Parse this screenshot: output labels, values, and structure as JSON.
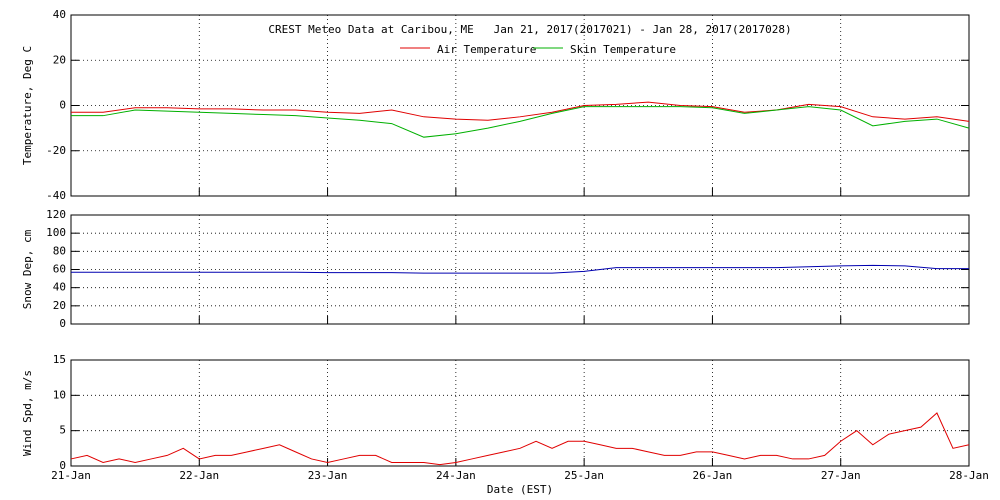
{
  "chart_data": [
    {
      "type": "line",
      "title": "CREST Meteo Data at Caribou, ME   Jan 21, 2017(2017021) - Jan 28, 2017(2017028)",
      "ylabel": "Temperature, Deg C",
      "xlim": [
        0,
        7
      ],
      "xticks": [
        {
          "value": 0,
          "label": "21-Jan"
        },
        {
          "value": 1,
          "label": "22-Jan"
        },
        {
          "value": 2,
          "label": "23-Jan"
        },
        {
          "value": 3,
          "label": "24-Jan"
        },
        {
          "value": 4,
          "label": "25-Jan"
        },
        {
          "value": 5,
          "label": "26-Jan"
        },
        {
          "value": 6,
          "label": "27-Jan"
        },
        {
          "value": 7,
          "label": "28-Jan"
        }
      ],
      "ylim": [
        -40,
        40
      ],
      "yticks": [
        -40,
        -20,
        0,
        20,
        40
      ],
      "grid": true,
      "x": [
        0,
        0.25,
        0.5,
        0.75,
        1,
        1.25,
        1.5,
        1.75,
        2,
        2.25,
        2.5,
        2.75,
        3,
        3.25,
        3.5,
        3.75,
        4,
        4.25,
        4.5,
        4.75,
        5,
        5.25,
        5.5,
        5.75,
        6,
        6.25,
        6.5,
        6.75,
        7
      ],
      "series": [
        {
          "name": "Air Temperature",
          "color": "#e00000",
          "values": [
            -3,
            -3,
            -1,
            -1,
            -1.5,
            -1.5,
            -2,
            -2,
            -3,
            -3.5,
            -2,
            -5,
            -6,
            -6.5,
            -5,
            -3,
            0,
            0.5,
            1.5,
            0,
            -0.5,
            -3,
            -2,
            0.5,
            -0.5,
            -5,
            -6,
            -5,
            -7
          ]
        },
        {
          "name": "Skin Temperature",
          "color": "#00b000",
          "values": [
            -4.5,
            -4.5,
            -2,
            -2.5,
            -3,
            -3.5,
            -4,
            -4.5,
            -5.5,
            -6.5,
            -8,
            -14,
            -12.5,
            -10,
            -7,
            -3.5,
            -0.5,
            -0.5,
            -0.5,
            -0.5,
            -1,
            -3.5,
            -2,
            -0.5,
            -2,
            -9,
            -7,
            -6,
            -10
          ]
        }
      ]
    },
    {
      "type": "line",
      "ylabel": "Snow Dep, cm",
      "xlim": [
        0,
        7
      ],
      "xticks": [
        {
          "value": 0,
          "label": "21-Jan"
        },
        {
          "value": 1,
          "label": "22-Jan"
        },
        {
          "value": 2,
          "label": "23-Jan"
        },
        {
          "value": 3,
          "label": "24-Jan"
        },
        {
          "value": 4,
          "label": "25-Jan"
        },
        {
          "value": 5,
          "label": "26-Jan"
        },
        {
          "value": 6,
          "label": "27-Jan"
        },
        {
          "value": 7,
          "label": "28-Jan"
        }
      ],
      "ylim": [
        0,
        120
      ],
      "yticks": [
        0,
        20,
        40,
        60,
        80,
        100,
        120
      ],
      "grid": true,
      "x": [
        0,
        0.25,
        0.5,
        0.75,
        1,
        1.25,
        1.5,
        1.75,
        2,
        2.25,
        2.5,
        2.75,
        3,
        3.25,
        3.5,
        3.75,
        4,
        4.25,
        4.5,
        4.75,
        5,
        5.25,
        5.5,
        5.75,
        6,
        6.25,
        6.5,
        6.75,
        7
      ],
      "series": [
        {
          "color": "#0000b0",
          "values": [
            57,
            57,
            57,
            57,
            57,
            57,
            57,
            57,
            56.5,
            56.5,
            56.5,
            56,
            56,
            56,
            56,
            56,
            58,
            62,
            62,
            62,
            62,
            62,
            62,
            63,
            64,
            64.5,
            64,
            61,
            61
          ]
        }
      ]
    },
    {
      "type": "line",
      "ylabel": "Wind Spd, m/s",
      "xlabel": "Date (EST)",
      "xlim": [
        0,
        7
      ],
      "xticks": [
        {
          "value": 0,
          "label": "21-Jan"
        },
        {
          "value": 1,
          "label": "22-Jan"
        },
        {
          "value": 2,
          "label": "23-Jan"
        },
        {
          "value": 3,
          "label": "24-Jan"
        },
        {
          "value": 4,
          "label": "25-Jan"
        },
        {
          "value": 5,
          "label": "26-Jan"
        },
        {
          "value": 6,
          "label": "27-Jan"
        },
        {
          "value": 7,
          "label": "28-Jan"
        }
      ],
      "ylim": [
        0,
        15
      ],
      "yticks": [
        0,
        5,
        10,
        15
      ],
      "grid": true,
      "x": [
        0,
        0.125,
        0.25,
        0.375,
        0.5,
        0.625,
        0.75,
        0.875,
        1,
        1.125,
        1.25,
        1.375,
        1.5,
        1.625,
        1.75,
        1.875,
        2,
        2.125,
        2.25,
        2.375,
        2.5,
        2.625,
        2.75,
        2.875,
        3,
        3.125,
        3.25,
        3.375,
        3.5,
        3.625,
        3.75,
        3.875,
        4,
        4.125,
        4.25,
        4.375,
        4.5,
        4.625,
        4.75,
        4.875,
        5,
        5.125,
        5.25,
        5.375,
        5.5,
        5.625,
        5.75,
        5.875,
        6,
        6.125,
        6.25,
        6.375,
        6.5,
        6.625,
        6.75,
        6.875,
        7
      ],
      "series": [
        {
          "color": "#e00000",
          "values": [
            1,
            1.5,
            0.5,
            1,
            0.5,
            1,
            1.5,
            2.5,
            1,
            1.5,
            1.5,
            2,
            2.5,
            3,
            2,
            1,
            0.5,
            1,
            1.5,
            1.5,
            0.5,
            0.5,
            0.5,
            0.2,
            0.5,
            1,
            1.5,
            2,
            2.5,
            3.5,
            2.5,
            3.5,
            3.5,
            3,
            2.5,
            2.5,
            2,
            1.5,
            1.5,
            2,
            2,
            1.5,
            1,
            1.5,
            1.5,
            1,
            1,
            1.5,
            3.5,
            5,
            3,
            4.5,
            5,
            5.5,
            7.5,
            2.5,
            3
          ]
        }
      ]
    }
  ]
}
